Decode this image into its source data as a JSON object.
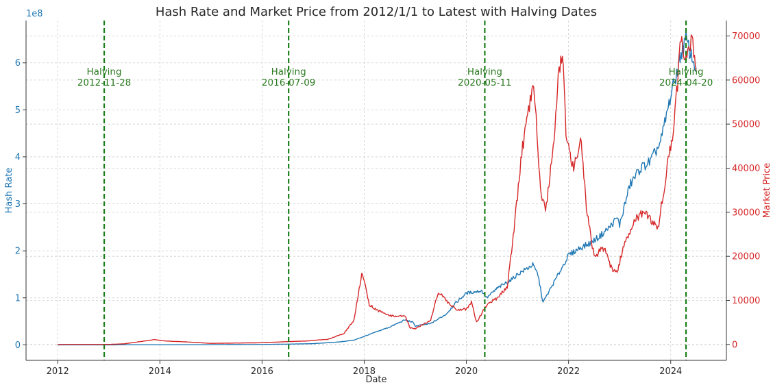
{
  "chart_data": {
    "type": "line",
    "title": "Hash Rate and Market Price from 2012/1/1 to Latest with Halving Dates",
    "xlabel": "Date",
    "xlim": [
      2011.38,
      2025.09
    ],
    "x_ticks": [
      {
        "value": 2012,
        "label": "2012"
      },
      {
        "value": 2014,
        "label": "2014"
      },
      {
        "value": 2016,
        "label": "2016"
      },
      {
        "value": 2018,
        "label": "2018"
      },
      {
        "value": 2020,
        "label": "2020"
      },
      {
        "value": 2022,
        "label": "2022"
      },
      {
        "value": 2024,
        "label": "2024"
      }
    ],
    "left_axis": {
      "label": "Hash Rate",
      "offset_text": "1e8",
      "color": "#1f77b4",
      "ylim": [
        -0.33,
        6.9
      ],
      "ticks": [
        {
          "value": 0,
          "label": "0"
        },
        {
          "value": 1,
          "label": "1"
        },
        {
          "value": 2,
          "label": "2"
        },
        {
          "value": 3,
          "label": "3"
        },
        {
          "value": 4,
          "label": "4"
        },
        {
          "value": 5,
          "label": "5"
        },
        {
          "value": 6,
          "label": "6"
        }
      ]
    },
    "right_axis": {
      "label": "Market Price",
      "color": "#d62728",
      "ylim": [
        -3600,
        73500
      ],
      "ticks": [
        {
          "value": 0,
          "label": "0"
        },
        {
          "value": 10000,
          "label": "10000"
        },
        {
          "value": 20000,
          "label": "20000"
        },
        {
          "value": 30000,
          "label": "30000"
        },
        {
          "value": 40000,
          "label": "40000"
        },
        {
          "value": 50000,
          "label": "50000"
        },
        {
          "value": 60000,
          "label": "60000"
        },
        {
          "value": 70000,
          "label": "70000"
        }
      ]
    },
    "series": [
      {
        "name": "Hash Rate",
        "axis": "left",
        "color": "#1f77b4",
        "points": [
          [
            2012.0,
            0.0
          ],
          [
            2013.0,
            0.0
          ],
          [
            2014.0,
            0.001
          ],
          [
            2015.0,
            0.003
          ],
          [
            2016.0,
            0.008
          ],
          [
            2016.5,
            0.015
          ],
          [
            2017.0,
            0.025
          ],
          [
            2017.5,
            0.06
          ],
          [
            2017.8,
            0.1
          ],
          [
            2018.0,
            0.18
          ],
          [
            2018.3,
            0.3
          ],
          [
            2018.5,
            0.38
          ],
          [
            2018.8,
            0.53
          ],
          [
            2018.95,
            0.48
          ],
          [
            2019.0,
            0.4
          ],
          [
            2019.3,
            0.45
          ],
          [
            2019.6,
            0.65
          ],
          [
            2019.8,
            0.9
          ],
          [
            2020.0,
            1.1
          ],
          [
            2020.3,
            1.15
          ],
          [
            2020.4,
            1.0
          ],
          [
            2020.6,
            1.2
          ],
          [
            2020.9,
            1.4
          ],
          [
            2021.0,
            1.5
          ],
          [
            2021.3,
            1.7
          ],
          [
            2021.4,
            1.5
          ],
          [
            2021.5,
            0.9
          ],
          [
            2021.6,
            1.1
          ],
          [
            2021.8,
            1.5
          ],
          [
            2022.0,
            1.9
          ],
          [
            2022.2,
            2.05
          ],
          [
            2022.4,
            2.15
          ],
          [
            2022.6,
            2.3
          ],
          [
            2022.8,
            2.5
          ],
          [
            2022.95,
            2.7
          ],
          [
            2023.0,
            2.55
          ],
          [
            2023.2,
            3.4
          ],
          [
            2023.4,
            3.75
          ],
          [
            2023.6,
            3.9
          ],
          [
            2023.8,
            4.3
          ],
          [
            2024.0,
            5.3
          ],
          [
            2024.1,
            5.7
          ],
          [
            2024.2,
            6.2
          ],
          [
            2024.3,
            6.5
          ],
          [
            2024.4,
            6.15
          ],
          [
            2024.5,
            5.9
          ]
        ]
      },
      {
        "name": "Market Price",
        "axis": "right",
        "color": "#d62728",
        "points": [
          [
            2012.0,
            5
          ],
          [
            2013.0,
            15
          ],
          [
            2013.3,
            150
          ],
          [
            2013.9,
            1100
          ],
          [
            2014.1,
            800
          ],
          [
            2014.5,
            600
          ],
          [
            2015.0,
            250
          ],
          [
            2016.0,
            400
          ],
          [
            2016.5,
            650
          ],
          [
            2016.9,
            800
          ],
          [
            2017.3,
            1200
          ],
          [
            2017.6,
            2500
          ],
          [
            2017.8,
            5500
          ],
          [
            2017.95,
            16000
          ],
          [
            2018.0,
            14500
          ],
          [
            2018.1,
            9000
          ],
          [
            2018.3,
            7500
          ],
          [
            2018.5,
            6500
          ],
          [
            2018.8,
            6400
          ],
          [
            2018.9,
            3800
          ],
          [
            2019.0,
            3600
          ],
          [
            2019.3,
            5500
          ],
          [
            2019.45,
            12000
          ],
          [
            2019.6,
            10000
          ],
          [
            2019.8,
            8000
          ],
          [
            2020.0,
            8000
          ],
          [
            2020.1,
            9500
          ],
          [
            2020.2,
            5000
          ],
          [
            2020.4,
            9000
          ],
          [
            2020.6,
            10500
          ],
          [
            2020.8,
            13000
          ],
          [
            2020.95,
            28000
          ],
          [
            2021.1,
            45000
          ],
          [
            2021.3,
            58000
          ],
          [
            2021.35,
            54000
          ],
          [
            2021.45,
            35000
          ],
          [
            2021.55,
            30000
          ],
          [
            2021.7,
            45000
          ],
          [
            2021.8,
            61000
          ],
          [
            2021.88,
            66000
          ],
          [
            2021.95,
            48000
          ],
          [
            2022.1,
            40000
          ],
          [
            2022.25,
            46000
          ],
          [
            2022.35,
            31000
          ],
          [
            2022.5,
            20000
          ],
          [
            2022.7,
            22000
          ],
          [
            2022.85,
            17000
          ],
          [
            2022.95,
            16500
          ],
          [
            2023.1,
            23000
          ],
          [
            2023.3,
            28500
          ],
          [
            2023.5,
            30000
          ],
          [
            2023.75,
            26500
          ],
          [
            2023.85,
            34000
          ],
          [
            2023.95,
            42000
          ],
          [
            2024.05,
            47000
          ],
          [
            2024.15,
            62000
          ],
          [
            2024.2,
            70000
          ],
          [
            2024.3,
            64000
          ],
          [
            2024.4,
            70000
          ],
          [
            2024.5,
            62000
          ]
        ]
      }
    ],
    "halvings": [
      {
        "x": 2012.91,
        "label_1": "Halving",
        "label_2": "2012-11-28"
      },
      {
        "x": 2016.52,
        "label_1": "Halving",
        "label_2": "2016-07-09"
      },
      {
        "x": 2020.36,
        "label_1": "Halving",
        "label_2": "2020-05-11"
      },
      {
        "x": 2024.3,
        "label_1": "Halving",
        "label_2": "2024-04-20"
      }
    ],
    "halving_color": "#1a7f1a",
    "grid": true
  }
}
